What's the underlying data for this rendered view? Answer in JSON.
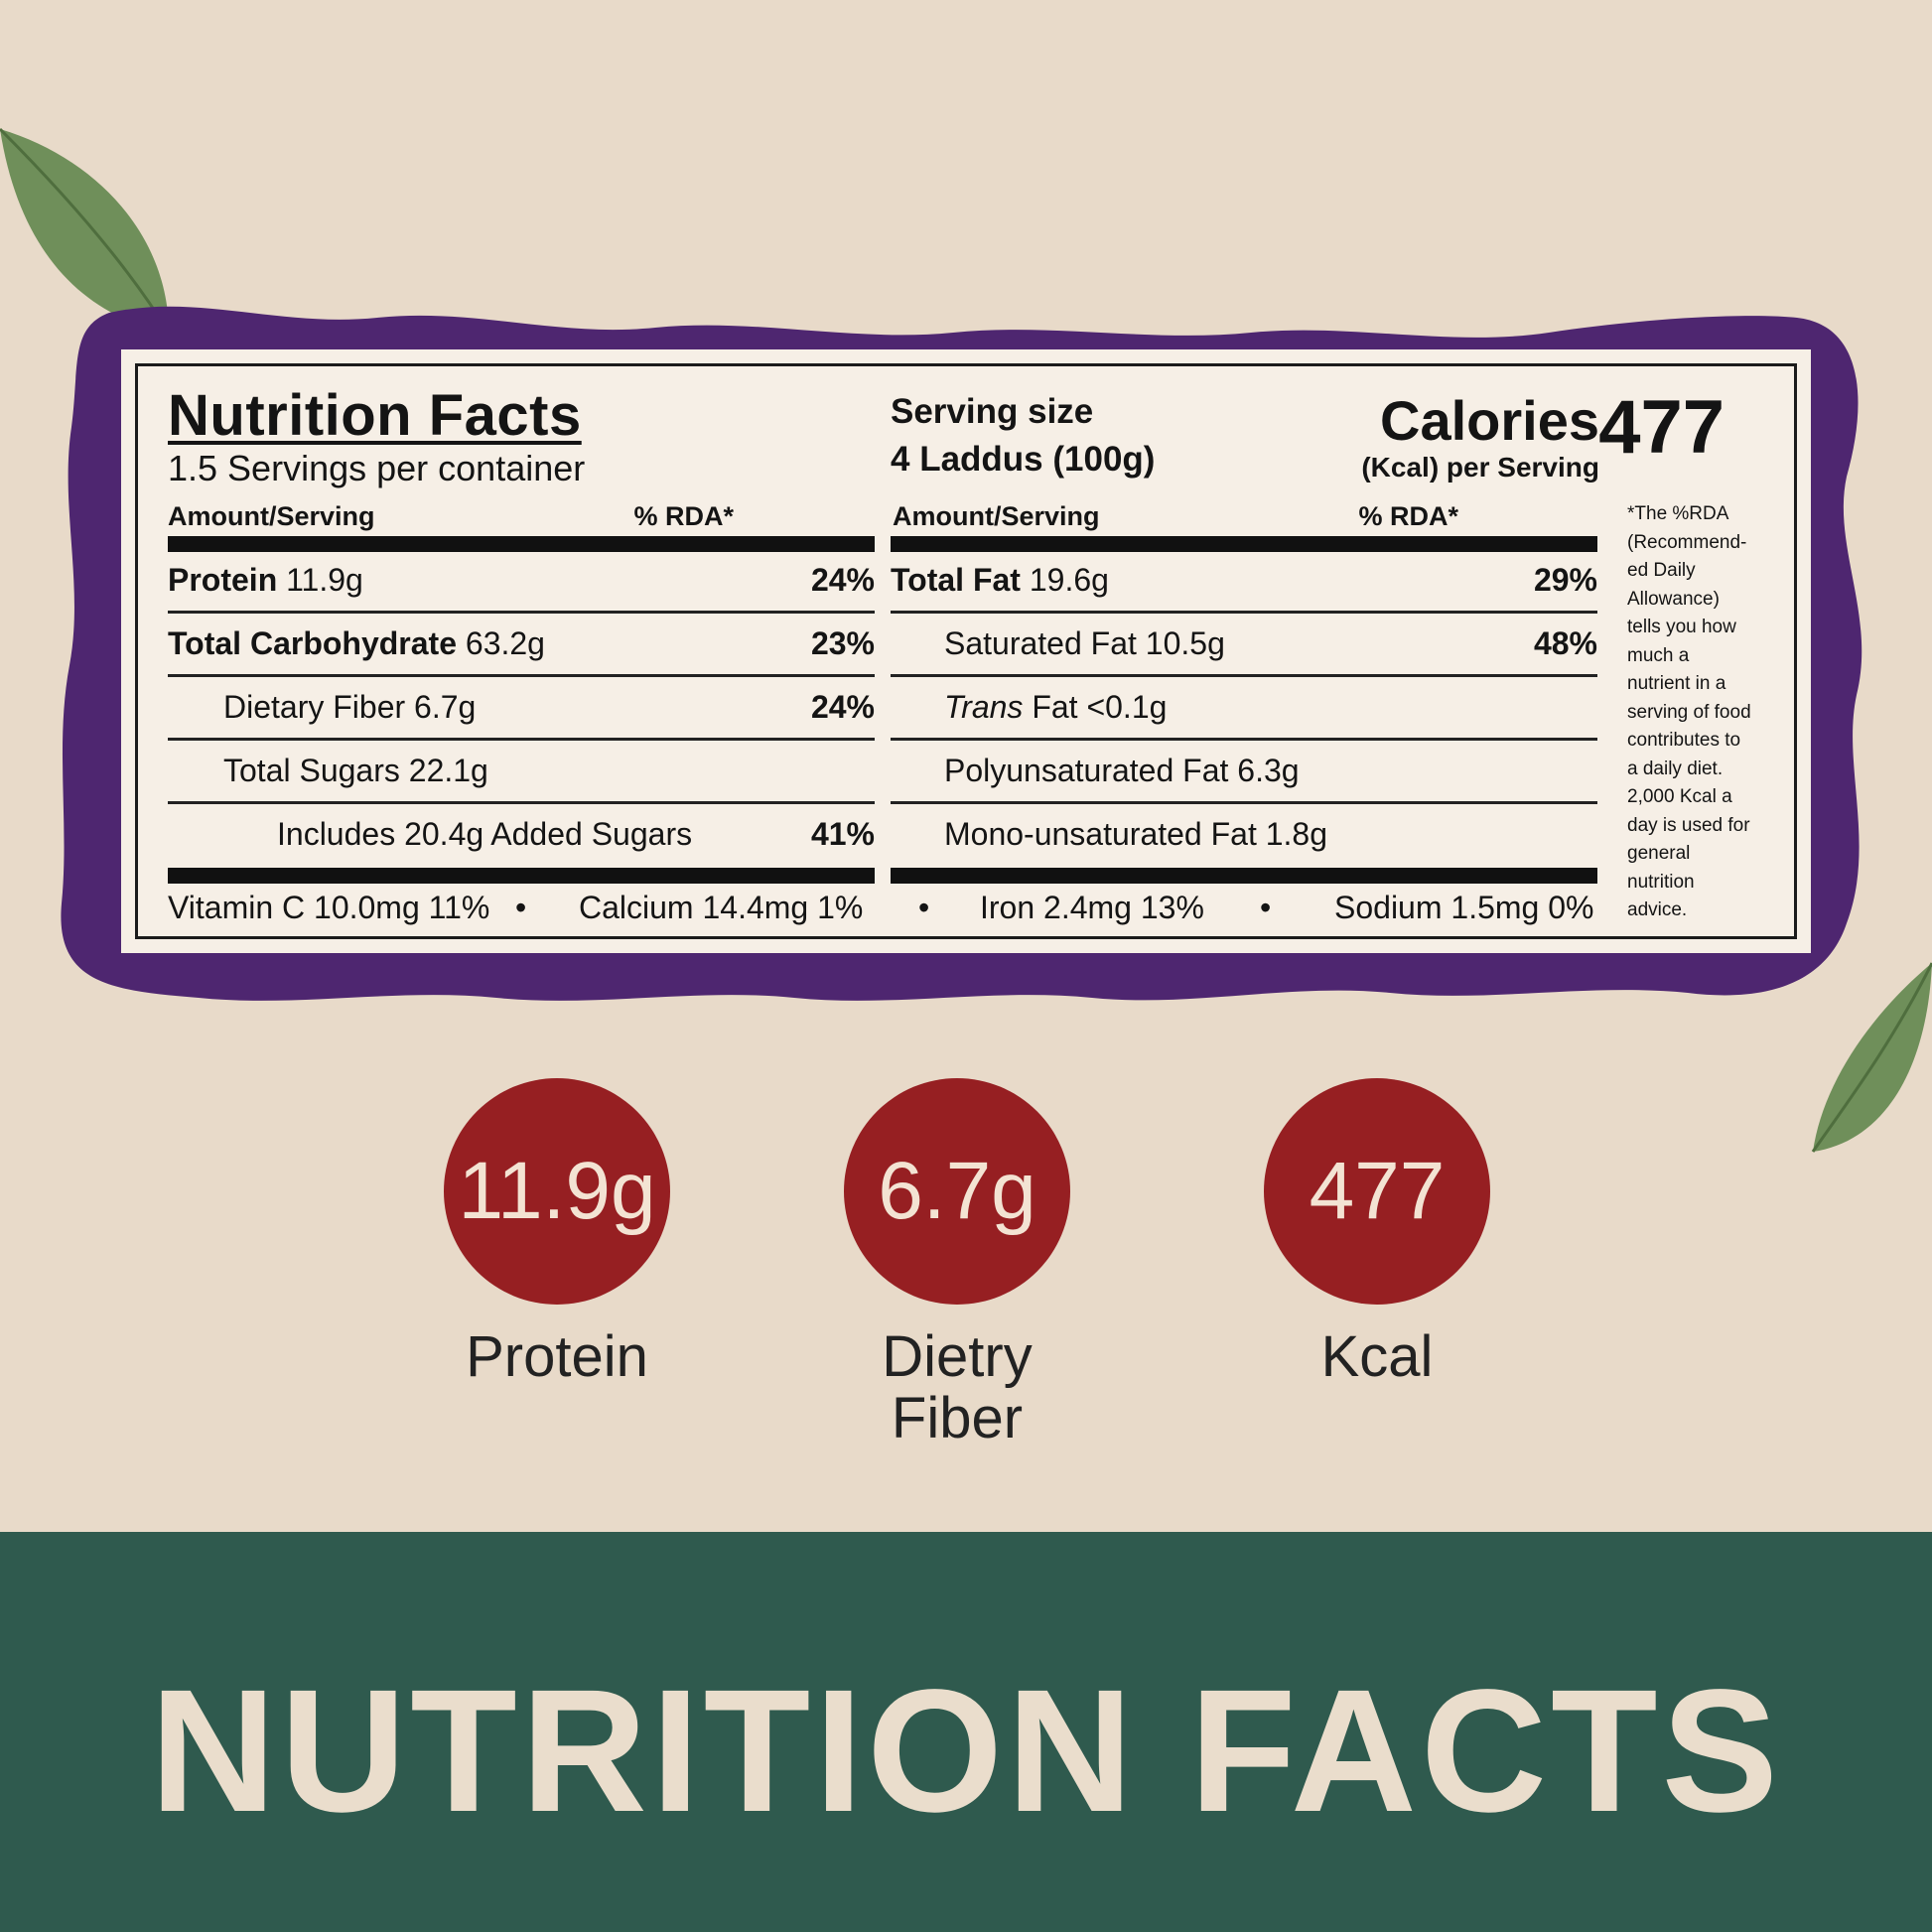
{
  "colors": {
    "background": "#e8dac9",
    "frame": "#4e2670",
    "label_paper": "#f6efe6",
    "badge": "#961f22",
    "banner": "#2f5a4e",
    "banner_text": "#eaddcc"
  },
  "label": {
    "title": "Nutrition Facts",
    "servings_per_container": "1.5 Servings per container",
    "serving_size_label": "Serving size",
    "serving_size_value": "4 Laddus (100g)",
    "calories_label": "Calories",
    "calories_sub": "(Kcal) per Serving",
    "calories_value": "477",
    "col_amount_header": "Amount/Serving",
    "col_rda_header": "% RDA*",
    "left_rows": [
      {
        "name": "Protein",
        "amount": "11.9g",
        "pct": "24%"
      },
      {
        "name": "Total Carbohydrate",
        "amount": "63.2g",
        "pct": "23%"
      },
      {
        "name": "Dietary Fiber",
        "amount": "6.7g",
        "pct": "24%"
      },
      {
        "name": "Total Sugars",
        "amount": "22.1g",
        "pct": ""
      },
      {
        "name": "Includes 20.4g Added Sugars",
        "amount": "",
        "pct": "41%"
      }
    ],
    "right_rows": [
      {
        "name": "Total Fat",
        "amount": "19.6g",
        "pct": "29%"
      },
      {
        "name": "Saturated Fat",
        "amount": "10.5g",
        "pct": "48%"
      },
      {
        "name": "Trans",
        "amount": "Fat <0.1g",
        "pct": ""
      },
      {
        "name": "Polyunsaturated Fat",
        "amount": "6.3g",
        "pct": ""
      },
      {
        "name": "Mono-unsaturated Fat",
        "amount": "1.8g",
        "pct": ""
      }
    ],
    "micros": {
      "vitamin_c": "Vitamin C 10.0mg 11%",
      "calcium": "Calcium 14.4mg 1%",
      "iron": "Iron 2.4mg 13%",
      "sodium": "Sodium 1.5mg 0%",
      "separator": "•"
    },
    "footnote": "*The %RDA\n(Recommend-\ned Daily\nAllowance)\ntells you how\nmuch a\nnutrient in a\nserving of  food\ncontributes to\na daily diet.\n2,000 Kcal a\nday is  used for\ngeneral\nnutrition\nadvice."
  },
  "highlights": [
    {
      "value": "11.9g",
      "label": "Protein"
    },
    {
      "value": "6.7g",
      "label": "Dietry\nFiber"
    },
    {
      "value": "477",
      "label": "Kcal"
    }
  ],
  "banner": {
    "text": "NUTRITION FACTS"
  },
  "icons": [
    "leaf-icon",
    "leaf-icon"
  ]
}
